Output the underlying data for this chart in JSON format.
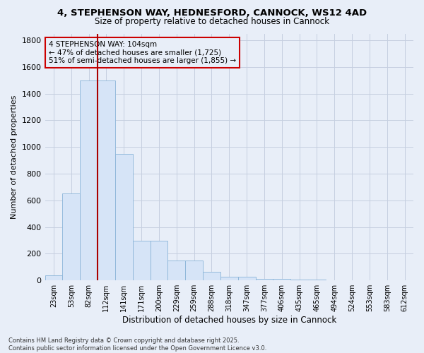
{
  "title_line1": "4, STEPHENSON WAY, HEDNESFORD, CANNOCK, WS12 4AD",
  "title_line2": "Size of property relative to detached houses in Cannock",
  "xlabel": "Distribution of detached houses by size in Cannock",
  "ylabel": "Number of detached properties",
  "footer_line1": "Contains HM Land Registry data © Crown copyright and database right 2025.",
  "footer_line2": "Contains public sector information licensed under the Open Government Licence v3.0.",
  "bar_labels": [
    "23sqm",
    "53sqm",
    "82sqm",
    "112sqm",
    "141sqm",
    "171sqm",
    "200sqm",
    "229sqm",
    "259sqm",
    "288sqm",
    "318sqm",
    "347sqm",
    "377sqm",
    "406sqm",
    "435sqm",
    "465sqm",
    "494sqm",
    "524sqm",
    "553sqm",
    "583sqm",
    "612sqm"
  ],
  "bar_values": [
    40,
    650,
    1500,
    1500,
    950,
    295,
    295,
    150,
    150,
    65,
    30,
    30,
    10,
    10,
    5,
    5,
    2,
    2,
    1,
    1,
    0
  ],
  "bar_color": "#d6e4f7",
  "bar_edge_color": "#8ab4d8",
  "grid_color": "#c5cfe0",
  "background_color": "#e8eef8",
  "annotation_text": "4 STEPHENSON WAY: 104sqm\n← 47% of detached houses are smaller (1,725)\n51% of semi-detached houses are larger (1,855) →",
  "vline_color": "#aa0000",
  "annotation_box_color": "#cc0000",
  "ylim_max": 1850,
  "yticks": [
    0,
    200,
    400,
    600,
    800,
    1000,
    1200,
    1400,
    1600,
    1800
  ]
}
